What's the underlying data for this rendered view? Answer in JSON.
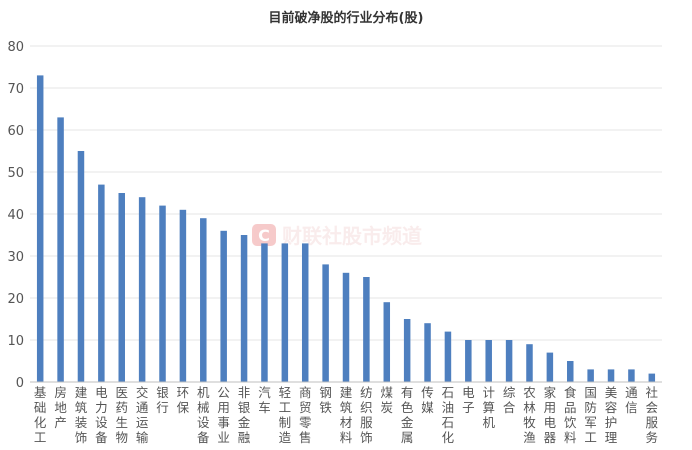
{
  "chart_data": {
    "type": "bar",
    "title": "目前破净股的行业分布(股)",
    "xlabel": "",
    "ylabel": "",
    "ylim": [
      0,
      80
    ],
    "yticks": [
      0,
      10,
      20,
      30,
      40,
      50,
      60,
      70,
      80
    ],
    "grid": true,
    "legend": "none",
    "categories": [
      "基础化工",
      "房地产",
      "建筑装饰",
      "电力设备",
      "医药生物",
      "交通运输",
      "银行",
      "环保",
      "机械设备",
      "公用事业",
      "非银金融",
      "汽车",
      "轻工制造",
      "商贸零售",
      "钢铁",
      "建筑材料",
      "纺织服饰",
      "煤炭",
      "有色金属",
      "传媒",
      "石油石化",
      "电子",
      "计算机",
      "综合",
      "农林牧渔",
      "家用电器",
      "食品饮料",
      "国防军工",
      "美容护理",
      "通信",
      "社会服务"
    ],
    "values": [
      73,
      63,
      55,
      47,
      45,
      44,
      42,
      41,
      39,
      36,
      35,
      33,
      33,
      33,
      28,
      26,
      25,
      19,
      15,
      14,
      12,
      10,
      10,
      10,
      9,
      7,
      5,
      3,
      3,
      3,
      2
    ],
    "bar_color": "#4e7fbf"
  },
  "watermark": {
    "logo_letter": "C",
    "text": "财联社股市频道",
    "color": "#e86a6a"
  }
}
